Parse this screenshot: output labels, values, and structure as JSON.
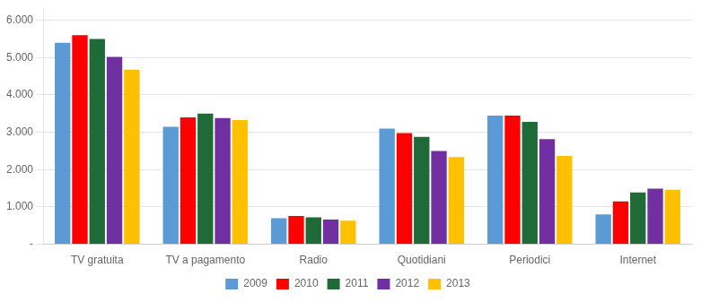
{
  "chart_data": {
    "type": "bar",
    "categories": [
      "TV gratuita",
      "TV a pagamento",
      "Radio",
      "Quotidiani",
      "Periodici",
      "Internet"
    ],
    "series": [
      {
        "name": "2009",
        "color": "#5b9bd5",
        "values": [
          5400,
          3150,
          700,
          3100,
          3450,
          800
        ]
      },
      {
        "name": "2010",
        "color": "#ff0000",
        "values": [
          5600,
          3400,
          760,
          2980,
          3450,
          1150
        ]
      },
      {
        "name": "2011",
        "color": "#1f6b37",
        "values": [
          5500,
          3500,
          720,
          2880,
          3280,
          1390
        ]
      },
      {
        "name": "2012",
        "color": "#7030a0",
        "values": [
          5020,
          3380,
          660,
          2500,
          2820,
          1490
        ]
      },
      {
        "name": "2013",
        "color": "#ffc000",
        "values": [
          4680,
          3330,
          630,
          2340,
          2370,
          1460
        ]
      }
    ],
    "ylim": [
      0,
      6300
    ],
    "yticks": [
      {
        "value": 0,
        "label": "-"
      },
      {
        "value": 1000,
        "label": "1.000"
      },
      {
        "value": 2000,
        "label": "2.000"
      },
      {
        "value": 3000,
        "label": "3.000"
      },
      {
        "value": 4000,
        "label": "4.000"
      },
      {
        "value": 5000,
        "label": "5.000"
      },
      {
        "value": 6000,
        "label": "6.000"
      }
    ],
    "grid": true,
    "legend": "bottom"
  }
}
